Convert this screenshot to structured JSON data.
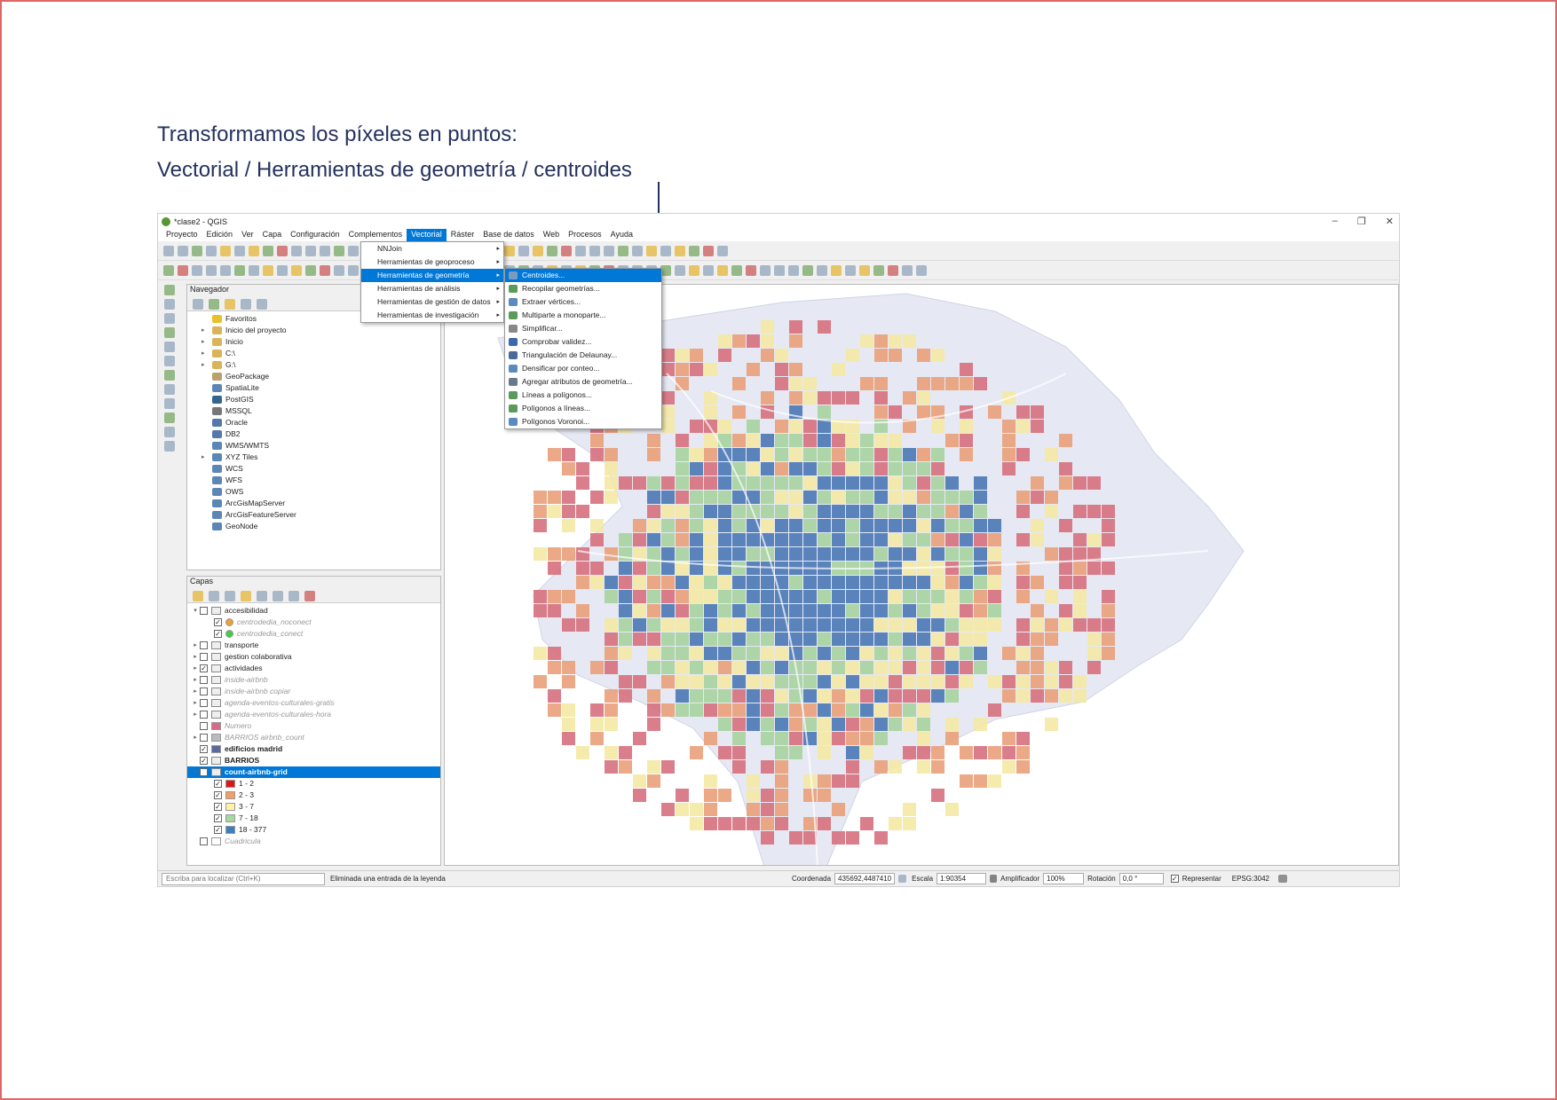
{
  "slide": {
    "line1": "Transformamos los píxeles en puntos:",
    "line2": "Vectorial / Herramientas de geometría / centroides"
  },
  "window": {
    "title": "*clase2 - QGIS",
    "controls": [
      "–",
      "❐",
      "✕"
    ]
  },
  "menubar": [
    "Proyecto",
    "Edición",
    "Ver",
    "Capa",
    "Configuración",
    "Complementos",
    "Vectorial",
    "Ráster",
    "Base de datos",
    "Web",
    "Procesos",
    "Ayuda"
  ],
  "vector_menu": [
    {
      "label": "NNJoin",
      "sub": true
    },
    {
      "label": "Herramientas de geoproceso",
      "sub": true
    },
    {
      "label": "Herramientas de geometría",
      "sub": true,
      "active": true
    },
    {
      "label": "Herramientas de análisis",
      "sub": true
    },
    {
      "label": "Herramientas de gestión de datos",
      "sub": true
    },
    {
      "label": "Herramientas de investigación",
      "sub": true
    }
  ],
  "geometry_menu": [
    "Centroides...",
    "Recopilar geometrías...",
    "Extraer vértices...",
    "Multiparte a monoparte...",
    "Simplificar...",
    "Comprobar validez...",
    "Triangulación de Delaunay...",
    "Densificar por conteo...",
    "Agregar atributos de geometría...",
    "Líneas a polígonos...",
    "Polígonos a líneas...",
    "Polígonos Voronoi..."
  ],
  "navigator": {
    "title": "Navegador",
    "items": [
      {
        "label": "Favoritos",
        "exp": "",
        "color": "#e8c12a"
      },
      {
        "label": "Inicio del proyecto",
        "exp": "▸",
        "color": "#d9b45a"
      },
      {
        "label": "Inicio",
        "exp": "▸",
        "color": "#d9b45a"
      },
      {
        "label": "C:\\",
        "exp": "▸",
        "color": "#d9b45a"
      },
      {
        "label": "G:\\",
        "exp": "▸",
        "color": "#d9b45a"
      },
      {
        "label": "GeoPackage",
        "exp": "",
        "color": "#b9a06c"
      },
      {
        "label": "SpatiaLite",
        "exp": "",
        "color": "#5b86b5"
      },
      {
        "label": "PostGIS",
        "exp": "",
        "color": "#33668a"
      },
      {
        "label": "MSSQL",
        "exp": "",
        "color": "#777"
      },
      {
        "label": "Oracle",
        "exp": "",
        "color": "#5577aa"
      },
      {
        "label": "DB2",
        "exp": "",
        "color": "#5577aa"
      },
      {
        "label": "WMS/WMTS",
        "exp": "",
        "color": "#5b86b5"
      },
      {
        "label": "XYZ Tiles",
        "exp": "▸",
        "color": "#5b86b5"
      },
      {
        "label": "WCS",
        "exp": "",
        "color": "#5b86b5"
      },
      {
        "label": "WFS",
        "exp": "",
        "color": "#5b86b5"
      },
      {
        "label": "OWS",
        "exp": "",
        "color": "#5b86b5"
      },
      {
        "label": "ArcGisMapServer",
        "exp": "",
        "color": "#5b86b5"
      },
      {
        "label": "ArcGisFeatureServer",
        "exp": "",
        "color": "#5b86b5"
      },
      {
        "label": "GeoNode",
        "exp": "",
        "color": "#5b86b5"
      }
    ]
  },
  "layers": {
    "title": "Capas",
    "items": [
      {
        "label": "accesibilidad",
        "exp": "▾",
        "indent": 0,
        "checked": false,
        "swatch": "",
        "style": ""
      },
      {
        "label": "centrodedia_noconect",
        "exp": "",
        "indent": 1,
        "checked": true,
        "swatch": "#f0a030",
        "style": "italic",
        "round": true
      },
      {
        "label": "centrodedia_conect",
        "exp": "",
        "indent": 1,
        "checked": true,
        "swatch": "#44cc44",
        "style": "italic",
        "round": true
      },
      {
        "label": "transporte",
        "exp": "▸",
        "indent": 0,
        "checked": false,
        "swatch": "",
        "style": ""
      },
      {
        "label": "gestion colaborativa",
        "exp": "▸",
        "indent": 0,
        "checked": false,
        "swatch": "",
        "style": ""
      },
      {
        "label": "actividades",
        "exp": "▸",
        "indent": 0,
        "checked": true,
        "swatch": "",
        "style": ""
      },
      {
        "label": "inside-airbnb",
        "exp": "▸",
        "indent": 0,
        "checked": false,
        "swatch": "",
        "style": "italic"
      },
      {
        "label": "inside-airbnb copiar",
        "exp": "▸",
        "indent": 0,
        "checked": false,
        "swatch": "",
        "style": "italic"
      },
      {
        "label": "agenda-eventos-culturales-gratis",
        "exp": "▸",
        "indent": 0,
        "checked": false,
        "swatch": "",
        "style": "italic"
      },
      {
        "label": "agenda-eventos-culturales-hora",
        "exp": "▸",
        "indent": 0,
        "checked": false,
        "swatch": "",
        "style": "italic"
      },
      {
        "label": "Numero",
        "exp": "",
        "indent": 0,
        "checked": false,
        "swatch": "#d86a8a",
        "style": "italic"
      },
      {
        "label": "BARRIOS airbnb_count",
        "exp": "▸",
        "indent": 0,
        "checked": false,
        "swatch": "#bbb",
        "style": "italic"
      },
      {
        "label": "edificios madrid",
        "exp": "",
        "indent": 0,
        "checked": true,
        "swatch": "#5a6aa0",
        "style": "bold"
      },
      {
        "label": "BARRIOS",
        "exp": "",
        "indent": 0,
        "checked": true,
        "swatch": "",
        "style": "bold"
      },
      {
        "label": "count-airbnb-grid",
        "exp": "▾",
        "indent": 0,
        "checked": true,
        "swatch": "",
        "style": "bold",
        "selected": true
      },
      {
        "label": "1 - 2",
        "exp": "",
        "indent": 1,
        "checked": true,
        "swatch": "#d7191c",
        "style": ""
      },
      {
        "label": "2 - 3",
        "exp": "",
        "indent": 1,
        "checked": true,
        "swatch": "#f0a060",
        "style": ""
      },
      {
        "label": "3 - 7",
        "exp": "",
        "indent": 1,
        "checked": true,
        "swatch": "#fff2a8",
        "style": ""
      },
      {
        "label": "7 - 18",
        "exp": "",
        "indent": 1,
        "checked": true,
        "swatch": "#a8d8a0",
        "style": ""
      },
      {
        "label": "18 - 377",
        "exp": "",
        "indent": 1,
        "checked": true,
        "swatch": "#3a7fbf",
        "style": ""
      },
      {
        "label": "Cuadricula",
        "exp": "",
        "indent": 0,
        "checked": false,
        "swatch": "#fff",
        "style": "italic"
      }
    ]
  },
  "statusbar": {
    "locate_placeholder": "Escriba para localizar (Ctrl+K)",
    "message": "Eliminada una entrada de la leyenda",
    "coord_label": "Coordenada",
    "coord_value": "435692,4487410",
    "scale_label": "Escala",
    "scale_value": "1:90354",
    "magnifier_label": "Amplificador",
    "magnifier_value": "100%",
    "rotation_label": "Rotación",
    "rotation_value": "0,0 °",
    "render_label": "Representar",
    "crs": "EPSG:3042"
  },
  "colors": {
    "accent": "#0078d7",
    "heading": "#25325e",
    "border": "#e06666"
  }
}
